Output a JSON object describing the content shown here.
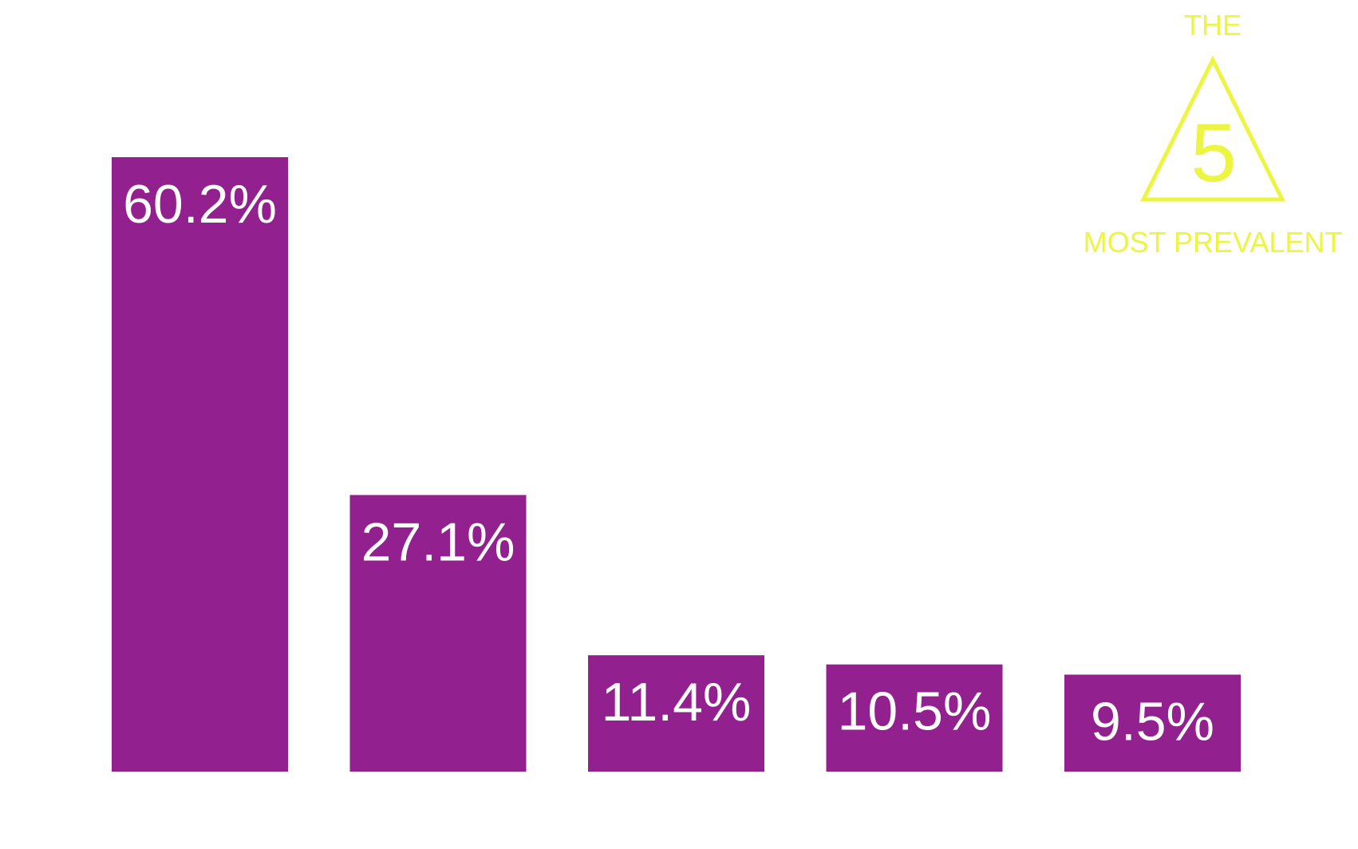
{
  "colors": {
    "bar": "#92208f",
    "label": "#ffffff",
    "accent": "#ecf542",
    "background": "#ffffff"
  },
  "badge": {
    "top_text": "THE",
    "number": "5",
    "bottom_text": "MOST PREVALENT",
    "icon": "triangle-icon"
  },
  "chart_data": {
    "type": "bar",
    "values": [
      60.2,
      27.1,
      11.4,
      10.5,
      9.5
    ],
    "labels": [
      "60.2%",
      "27.1%",
      "11.4%",
      "10.5%",
      "9.5%"
    ],
    "ylim": [
      0,
      60.2
    ],
    "grid": false
  }
}
